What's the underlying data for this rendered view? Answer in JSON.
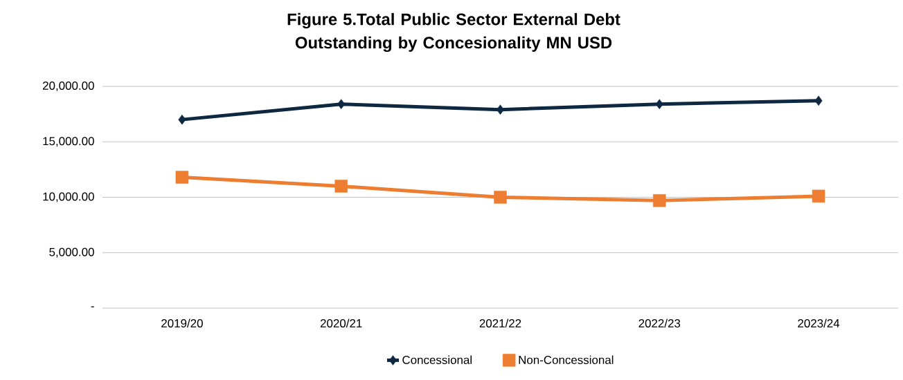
{
  "chart_data": {
    "type": "line",
    "title": "Figure 5.Total Public Sector  External Debt Outstanding by Concesionality MN USD",
    "categories": [
      "2019/20",
      "2020/21",
      "2021/22",
      "2022/23",
      "2023/24"
    ],
    "series": [
      {
        "name": "Concessional",
        "color": "#0e2841",
        "marker": "diamond",
        "values": [
          17000,
          18400,
          17900,
          18400,
          18700
        ]
      },
      {
        "name": "Non-Concessional",
        "color": "#ed7d31",
        "marker": "square",
        "values": [
          11800,
          11000,
          10000,
          9700,
          10100
        ]
      }
    ],
    "ylim": [
      0,
      20000
    ],
    "yticks": [
      {
        "value": 0,
        "label": "-"
      },
      {
        "value": 5000,
        "label": "5,000.00"
      },
      {
        "value": 10000,
        "label": "10,000.00"
      },
      {
        "value": 15000,
        "label": "15,000.00"
      },
      {
        "value": 20000,
        "label": "20,000.00"
      }
    ],
    "grid": "y",
    "legend": "bottom"
  }
}
